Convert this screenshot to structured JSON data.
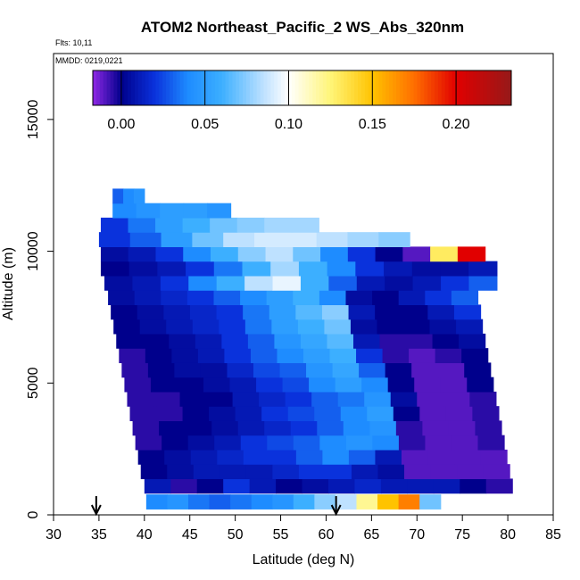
{
  "chart_data": {
    "type": "heatmap",
    "title": "ATOM2 Northeast_Pacific_2 WS_Abs_320nm",
    "flights_label": "Flts: 10,11",
    "dates_label": "MMDD: 0219,0221",
    "xlabel": "Latitude (deg N)",
    "ylabel": "Altitude (m)",
    "xlim": [
      30,
      85
    ],
    "ylim": [
      0,
      17500
    ],
    "x_ticks": [
      "30",
      "35",
      "40",
      "45",
      "50",
      "55",
      "60",
      "65",
      "70",
      "75",
      "80",
      "85"
    ],
    "y_ticks": [
      "0",
      "5000",
      "10000",
      "15000"
    ],
    "colorbar": {
      "range": [
        -0.017,
        0.233
      ],
      "tick_labels": [
        "0.00",
        "0.05",
        "0.10",
        "0.15",
        "0.20"
      ],
      "tick_values": [
        0,
        0.05,
        0.1,
        0.15,
        0.2
      ]
    },
    "arrows_latitude": [
      34.7,
      61.1
    ],
    "bands": [
      {
        "alt": 500,
        "lat": [
          40.2,
          72.6
        ],
        "values": [
          0.04,
          0.045,
          0.035,
          0.03,
          0.035,
          0.04,
          0.045,
          0.06,
          0.075,
          0.085,
          0.12,
          0.15,
          0.17,
          0.07
        ]
      },
      {
        "alt": 1100,
        "lat": [
          40.0,
          80.5
        ],
        "values": [
          0.01,
          -0.005,
          0.0,
          0.02,
          0.01,
          0.0,
          0.005,
          0.01,
          0.015,
          0.01,
          0.01,
          0.01,
          0.0,
          -0.005
        ]
      },
      {
        "alt": 1650,
        "lat": [
          39.6,
          80.2
        ],
        "values": [
          0.0,
          0.005,
          0.01,
          0.01,
          0.01,
          0.015,
          0.02,
          0.02,
          0.01,
          0.005,
          -0.01,
          -0.01,
          -0.01,
          -0.01
        ]
      },
      {
        "alt": 2200,
        "lat": [
          39.3,
          79.9
        ],
        "values": [
          0.0,
          0.005,
          0.01,
          0.015,
          0.02,
          0.02,
          0.03,
          0.04,
          0.03,
          0.01,
          -0.01,
          -0.01,
          -0.01,
          -0.01
        ]
      },
      {
        "alt": 2750,
        "lat": [
          39.0,
          79.6
        ],
        "values": [
          -0.005,
          0.0,
          0.005,
          0.01,
          0.02,
          0.025,
          0.03,
          0.04,
          0.045,
          0.04,
          -0.005,
          -0.01,
          -0.01,
          -0.005
        ]
      },
      {
        "alt": 3300,
        "lat": [
          38.7,
          79.3
        ],
        "values": [
          -0.005,
          0.0,
          0.0,
          0.005,
          0.01,
          0.015,
          0.02,
          0.03,
          0.04,
          0.045,
          -0.005,
          -0.01,
          -0.01,
          -0.005
        ]
      },
      {
        "alt": 3850,
        "lat": [
          38.4,
          79.0
        ],
        "values": [
          -0.005,
          -0.005,
          0.0,
          0.005,
          0.01,
          0.02,
          0.025,
          0.03,
          0.04,
          0.05,
          0.0,
          -0.01,
          -0.01,
          -0.005
        ]
      },
      {
        "alt": 4400,
        "lat": [
          38.1,
          78.7
        ],
        "values": [
          -0.005,
          -0.005,
          0.0,
          0.0,
          0.01,
          0.015,
          0.02,
          0.03,
          0.035,
          0.045,
          0.005,
          -0.01,
          -0.01,
          -0.005
        ]
      },
      {
        "alt": 4950,
        "lat": [
          37.8,
          78.4
        ],
        "values": [
          -0.005,
          0.0,
          0.0,
          0.005,
          0.01,
          0.02,
          0.025,
          0.04,
          0.05,
          0.04,
          0.0,
          -0.01,
          -0.01,
          0.0
        ]
      },
      {
        "alt": 5500,
        "lat": [
          37.5,
          78.1
        ],
        "values": [
          -0.005,
          0.0,
          0.005,
          0.005,
          0.015,
          0.025,
          0.03,
          0.045,
          0.055,
          0.03,
          0.0,
          -0.01,
          -0.01,
          0.0
        ]
      },
      {
        "alt": 6050,
        "lat": [
          37.2,
          77.8
        ],
        "values": [
          -0.005,
          0.0,
          0.005,
          0.01,
          0.02,
          0.03,
          0.04,
          0.05,
          0.06,
          0.02,
          -0.005,
          -0.01,
          -0.005,
          0.0
        ]
      },
      {
        "alt": 6600,
        "lat": [
          36.9,
          77.5
        ],
        "values": [
          0.0,
          0.0,
          0.005,
          0.01,
          0.02,
          0.03,
          0.045,
          0.055,
          0.065,
          0.01,
          -0.005,
          -0.005,
          0.0,
          0.005
        ]
      },
      {
        "alt": 7150,
        "lat": [
          36.6,
          77.2
        ],
        "values": [
          0.0,
          0.005,
          0.01,
          0.015,
          0.02,
          0.035,
          0.05,
          0.06,
          0.07,
          0.005,
          0.0,
          0.0,
          0.005,
          0.01
        ]
      },
      {
        "alt": 7700,
        "lat": [
          36.3,
          77.0
        ],
        "values": [
          0.0,
          0.005,
          0.01,
          0.015,
          0.02,
          0.035,
          0.05,
          0.065,
          0.075,
          0.01,
          0.0,
          0.0,
          0.01,
          0.02
        ]
      },
      {
        "alt": 8250,
        "lat": [
          36.0,
          76.7
        ],
        "values": [
          0.005,
          0.01,
          0.015,
          0.02,
          0.03,
          0.04,
          0.05,
          0.06,
          0.04,
          0.005,
          0.0,
          0.01,
          0.02,
          0.03
        ]
      },
      {
        "alt": 8800,
        "lat": [
          35.6,
          78.8
        ],
        "values": [
          0.005,
          0.01,
          0.02,
          0.04,
          0.06,
          0.085,
          0.095,
          0.06,
          0.03,
          0.01,
          0.005,
          0.01,
          0.02,
          0.03
        ]
      },
      {
        "alt": 9350,
        "lat": [
          35.2,
          78.8
        ],
        "values": [
          0.0,
          0.005,
          0.01,
          0.02,
          0.035,
          0.06,
          0.08,
          0.06,
          0.04,
          0.02,
          0.01,
          0.005,
          0.005,
          0.01
        ]
      },
      {
        "alt": 9900,
        "lat": [
          35.2,
          77.5
        ],
        "values": [
          0.005,
          0.01,
          0.02,
          0.04,
          0.06,
          0.075,
          0.085,
          0.07,
          0.04,
          0.02,
          0.0,
          -0.01,
          0.13,
          0.2
        ]
      },
      {
        "alt": 10450,
        "lat": [
          35.0,
          69.2
        ],
        "values": [
          0.02,
          0.03,
          0.05,
          0.07,
          0.085,
          0.09,
          0.09,
          0.085,
          0.08,
          0.075
        ]
      },
      {
        "alt": 11000,
        "lat": [
          35.2,
          59.2
        ],
        "values": [
          0.02,
          0.035,
          0.05,
          0.06,
          0.07,
          0.075,
          0.08,
          0.08
        ]
      },
      {
        "alt": 11550,
        "lat": [
          36.5,
          49.5
        ],
        "values": [
          0.04,
          0.045,
          0.05,
          0.05,
          0.045
        ]
      },
      {
        "alt": 12100,
        "lat": [
          36.5,
          40.0
        ],
        "values": [
          0.03,
          0.04,
          0.045
        ]
      }
    ],
    "x_title": "",
    "y_title": ""
  }
}
